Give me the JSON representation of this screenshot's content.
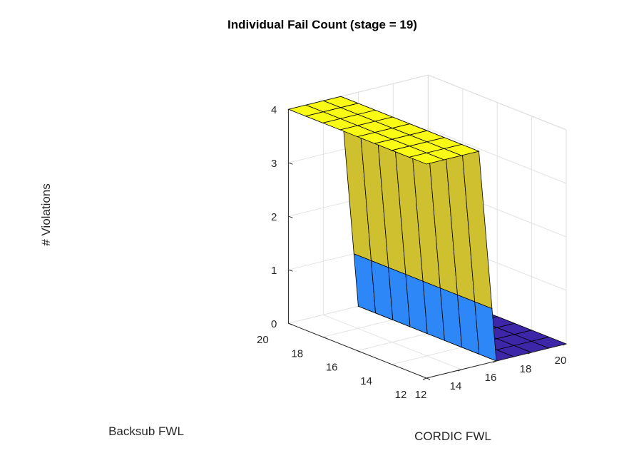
{
  "chart_data": {
    "type": "surface3d",
    "title": "Individual Fail Count (stage = 19)",
    "xlabel": "CORDIC FWL",
    "ylabel": "Backsub FWL",
    "zlabel": "# Violations",
    "x": [
      12,
      13,
      14,
      15,
      16,
      17,
      18,
      19,
      20
    ],
    "y": [
      12,
      13,
      14,
      15,
      16,
      17,
      18,
      19,
      20
    ],
    "z_rows_by_backsub": [
      [
        4,
        4,
        4,
        4,
        0,
        0,
        0,
        0,
        0
      ],
      [
        4,
        4,
        4,
        4,
        0,
        0,
        0,
        0,
        0
      ],
      [
        4,
        4,
        4,
        4,
        0,
        0,
        0,
        0,
        0
      ],
      [
        4,
        4,
        4,
        4,
        0,
        0,
        0,
        0,
        0
      ],
      [
        4,
        4,
        4,
        4,
        0,
        0,
        0,
        0,
        0
      ],
      [
        4,
        4,
        4,
        4,
        0,
        0,
        0,
        0,
        0
      ],
      [
        4,
        4,
        4,
        4,
        0,
        0,
        0,
        0,
        0
      ],
      [
        4,
        4,
        4,
        4,
        0,
        0,
        0,
        0,
        0
      ],
      [
        4,
        4,
        4,
        4,
        0,
        0,
        0,
        0,
        0
      ]
    ],
    "xlim": [
      12,
      20
    ],
    "ylim": [
      12,
      20
    ],
    "zlim": [
      0,
      4
    ],
    "x_ticks": [
      "12",
      "14",
      "16",
      "18",
      "20"
    ],
    "y_ticks": [
      "12",
      "14",
      "16",
      "18",
      "20"
    ],
    "z_ticks": [
      "0",
      "1",
      "2",
      "3",
      "4"
    ],
    "grid": true,
    "colormap": {
      "0": "#3e26a8",
      "1": "#2e87f7",
      "2": "#cfc030",
      "3": "#cfc030",
      "4": "#f9fb15"
    },
    "edge_color": "#000000"
  }
}
